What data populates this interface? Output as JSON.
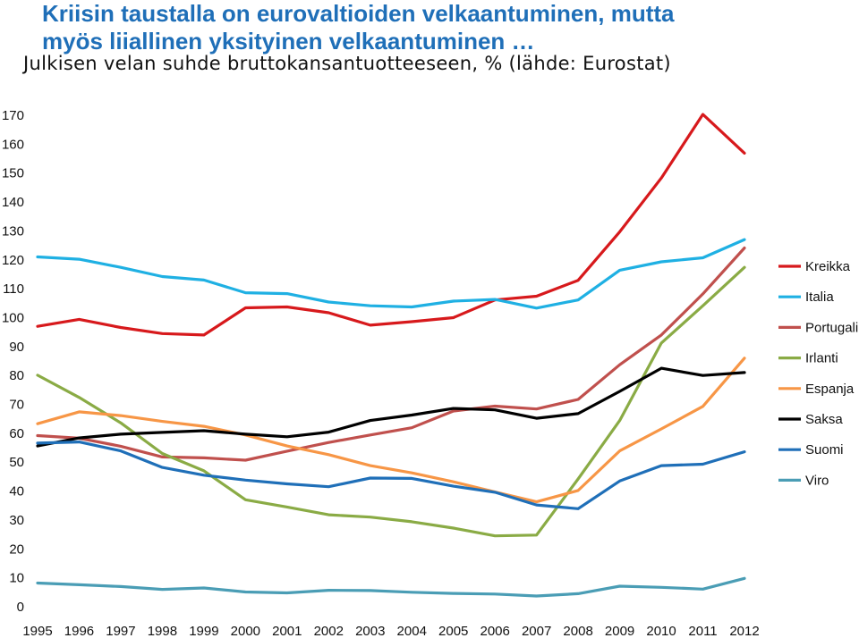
{
  "header": {
    "title_line1": "Kriisin taustalla on eurovaltioiden velkaantuminen, mutta",
    "title_line2": "myös liiallinen yksityinen velkaantuminen …",
    "subtitle": "Julkisen velan suhde bruttokansantuotteeseen, % (lähde: Eurostat)"
  },
  "chart_data": {
    "type": "line",
    "title": "Julkisen velan suhde bruttokansantuotteeseen, % (lähde: Eurostat)",
    "xlabel": "",
    "ylabel": "",
    "x": [
      "1995",
      "1996",
      "1997",
      "1998",
      "1999",
      "2000",
      "2001",
      "2002",
      "2003",
      "2004",
      "2005",
      "2006",
      "2007",
      "2008",
      "2009",
      "2010",
      "2011",
      "2012"
    ],
    "ylim": [
      0,
      170
    ],
    "yticks": [
      0,
      10,
      20,
      30,
      40,
      50,
      60,
      70,
      80,
      90,
      100,
      110,
      120,
      130,
      140,
      150,
      160,
      170
    ],
    "grid": false,
    "legend_position": "right",
    "series": [
      {
        "name": "Kreikka",
        "color": "#d7191c",
        "values": [
          97.0,
          99.4,
          96.6,
          94.5,
          94.0,
          103.4,
          103.7,
          101.7,
          97.4,
          98.6,
          100.0,
          106.1,
          107.4,
          112.9,
          129.7,
          148.3,
          170.3,
          156.9
        ]
      },
      {
        "name": "Italia",
        "color": "#1fb0e3",
        "values": [
          121.0,
          120.2,
          117.4,
          114.2,
          113.0,
          108.6,
          108.3,
          105.4,
          104.1,
          103.7,
          105.7,
          106.3,
          103.3,
          106.1,
          116.4,
          119.3,
          120.7,
          127.0
        ]
      },
      {
        "name": "Portugali",
        "color": "#c0504d",
        "values": [
          59.2,
          58.3,
          55.5,
          51.8,
          51.5,
          50.7,
          53.8,
          56.8,
          59.4,
          61.9,
          67.7,
          69.4,
          68.4,
          71.7,
          83.7,
          94.0,
          108.2,
          124.1
        ]
      },
      {
        "name": "Irlanti",
        "color": "#8aab45",
        "values": [
          80.1,
          72.4,
          63.6,
          53.0,
          47.0,
          37.0,
          34.5,
          31.8,
          31.0,
          29.4,
          27.2,
          24.5,
          24.8,
          44.2,
          64.4,
          91.2,
          104.1,
          117.4
        ]
      },
      {
        "name": "Espanja",
        "color": "#f79646",
        "values": [
          63.3,
          67.4,
          66.1,
          64.1,
          62.4,
          59.4,
          55.6,
          52.6,
          48.8,
          46.3,
          43.2,
          39.7,
          36.3,
          40.2,
          53.9,
          61.5,
          69.3,
          86.0
        ]
      },
      {
        "name": "Saksa",
        "color": "#000000",
        "values": [
          55.6,
          58.4,
          59.7,
          60.3,
          60.9,
          59.7,
          58.8,
          60.4,
          64.4,
          66.3,
          68.6,
          68.1,
          65.2,
          66.8,
          74.5,
          82.5,
          80.0,
          81.0
        ]
      },
      {
        "name": "Suomi",
        "color": "#1f6fb8",
        "values": [
          56.6,
          57.0,
          53.9,
          48.2,
          45.5,
          43.8,
          42.5,
          41.5,
          44.5,
          44.4,
          41.7,
          39.6,
          35.2,
          33.9,
          43.5,
          48.8,
          49.3,
          53.6
        ]
      },
      {
        "name": "Viro",
        "color": "#4a9db5",
        "values": [
          8.2,
          7.6,
          7.0,
          6.0,
          6.5,
          5.1,
          4.8,
          5.7,
          5.6,
          5.0,
          4.6,
          4.4,
          3.7,
          4.5,
          7.1,
          6.7,
          6.1,
          9.8
        ]
      }
    ]
  }
}
